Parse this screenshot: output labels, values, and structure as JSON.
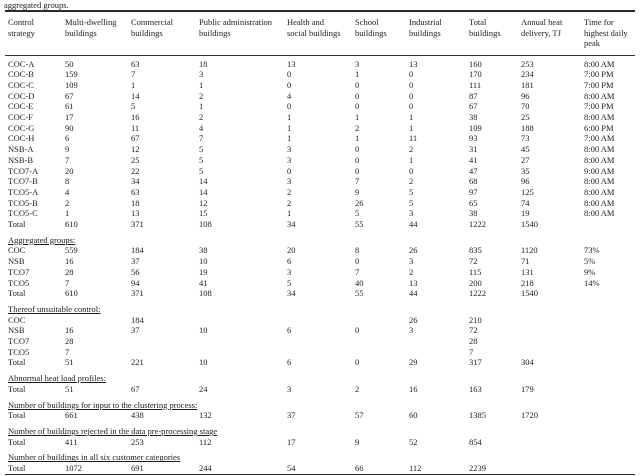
{
  "caption_tail": "aggregated groups.",
  "columns": [
    {
      "label": "Control\nstrategy"
    },
    {
      "label": "Multi-dwelling\nbuildings"
    },
    {
      "label": "Commercial\nbuildings"
    },
    {
      "label": "Public administration\nbuildings"
    },
    {
      "label": "Health and\nsocial buildings"
    },
    {
      "label": "School\nbuildings"
    },
    {
      "label": "Industrial\nbuildings"
    },
    {
      "label": "Total\nbuildings"
    },
    {
      "label": "Annual heat\ndelivery, TJ"
    },
    {
      "label": "Time for\nhighest daily\npeak"
    }
  ],
  "sections": [
    {
      "header": null,
      "rows": [
        {
          "label": "COC-A",
          "values": [
            "50",
            "63",
            "18",
            "13",
            "3",
            "13",
            "160",
            "253",
            "8:00 AM"
          ]
        },
        {
          "label": "COC-B",
          "values": [
            "159",
            "7",
            "3",
            "0",
            "1",
            "0",
            "170",
            "234",
            "7:00 PM"
          ]
        },
        {
          "label": "COC-C",
          "values": [
            "109",
            "1",
            "1",
            "0",
            "0",
            "0",
            "111",
            "181",
            "7:00 PM"
          ]
        },
        {
          "label": "COC-D",
          "values": [
            "67",
            "14",
            "2",
            "4",
            "0",
            "0",
            "87",
            "96",
            "8:00 AM"
          ]
        },
        {
          "label": "COC-E",
          "values": [
            "61",
            "5",
            "1",
            "0",
            "0",
            "0",
            "67",
            "70",
            "7:00 PM"
          ]
        },
        {
          "label": "COC-F",
          "values": [
            "17",
            "16",
            "2",
            "1",
            "1",
            "1",
            "38",
            "25",
            "8:00 AM"
          ]
        },
        {
          "label": "COC-G",
          "values": [
            "90",
            "11",
            "4",
            "1",
            "2",
            "1",
            "109",
            "188",
            "6:00 PM"
          ]
        },
        {
          "label": "COC-H",
          "values": [
            "6",
            "67",
            "7",
            "1",
            "1",
            "11",
            "93",
            "73",
            "7:00 AM"
          ]
        },
        {
          "label": "NSB-A",
          "values": [
            "9",
            "12",
            "5",
            "3",
            "0",
            "2",
            "31",
            "45",
            "8:00 AM"
          ]
        },
        {
          "label": "NSB-B",
          "values": [
            "7",
            "25",
            "5",
            "3",
            "0",
            "1",
            "41",
            "27",
            "8:00 AM"
          ]
        },
        {
          "label": "TCO7-A",
          "values": [
            "20",
            "22",
            "5",
            "0",
            "0",
            "0",
            "47",
            "35",
            "9:00 AM"
          ]
        },
        {
          "label": "TCO7-B",
          "values": [
            "8",
            "34",
            "14",
            "3",
            "7",
            "2",
            "68",
            "96",
            "8:00 AM"
          ]
        },
        {
          "label": "TCO5-A",
          "values": [
            "4",
            "63",
            "14",
            "2",
            "9",
            "5",
            "97",
            "125",
            "8:00 AM"
          ]
        },
        {
          "label": "TCO5-B",
          "values": [
            "2",
            "18",
            "12",
            "2",
            "26",
            "5",
            "65",
            "74",
            "8:00 AM"
          ]
        },
        {
          "label": "TCO5-C",
          "values": [
            "1",
            "13",
            "15",
            "1",
            "5",
            "3",
            "38",
            "19",
            "8:00 AM"
          ]
        },
        {
          "label": "Total",
          "values": [
            "610",
            "371",
            "108",
            "34",
            "55",
            "44",
            "1222",
            "1540",
            ""
          ]
        }
      ]
    },
    {
      "header": "Aggregated groups:",
      "rows": [
        {
          "label": "COC",
          "values": [
            "559",
            "184",
            "38",
            "20",
            "8",
            "26",
            "835",
            "1120",
            "73%"
          ]
        },
        {
          "label": "NSB",
          "values": [
            "16",
            "37",
            "10",
            "6",
            "0",
            "3",
            "72",
            "71",
            "5%"
          ]
        },
        {
          "label": "TCO7",
          "values": [
            "28",
            "56",
            "19",
            "3",
            "7",
            "2",
            "115",
            "131",
            "9%"
          ]
        },
        {
          "label": "TCO5",
          "values": [
            "7",
            "94",
            "41",
            "5",
            "40",
            "13",
            "200",
            "218",
            "14%"
          ]
        },
        {
          "label": "Total",
          "values": [
            "610",
            "371",
            "108",
            "34",
            "55",
            "44",
            "1222",
            "1540",
            ""
          ]
        }
      ]
    },
    {
      "header": "Thereof unsuitable control:",
      "rows": [
        {
          "label": "COC",
          "values": [
            "",
            "184",
            "",
            "",
            "",
            "26",
            "210",
            "",
            ""
          ]
        },
        {
          "label": "NSB",
          "values": [
            "16",
            "37",
            "10",
            "6",
            "0",
            "3",
            "72",
            "",
            ""
          ]
        },
        {
          "label": "TCO7",
          "values": [
            "28",
            "",
            "",
            "",
            "",
            "",
            "28",
            "",
            ""
          ]
        },
        {
          "label": "TCO5",
          "values": [
            "7",
            "",
            "",
            "",
            "",
            "",
            "7",
            "",
            ""
          ]
        },
        {
          "label": "Total",
          "values": [
            "51",
            "221",
            "10",
            "6",
            "0",
            "29",
            "317",
            "304",
            ""
          ]
        }
      ]
    },
    {
      "header": "Abnormal heat load profiles:",
      "rows": [
        {
          "label": "Total",
          "values": [
            "51",
            "67",
            "24",
            "3",
            "2",
            "16",
            "163",
            "179",
            ""
          ]
        }
      ]
    },
    {
      "header": "Number of buildings for input to the clustering process:",
      "rows": [
        {
          "label": "Total",
          "values": [
            "661",
            "438",
            "132",
            "37",
            "57",
            "60",
            "1385",
            "1720",
            ""
          ]
        }
      ]
    },
    {
      "header": "Number of buildings rejected in the data pre-processing stage",
      "rows": [
        {
          "label": "Total",
          "values": [
            "411",
            "253",
            "112",
            "17",
            "9",
            "52",
            "854",
            "",
            ""
          ]
        }
      ]
    },
    {
      "header": "Number of buildings in all six customer categories",
      "rows": [
        {
          "label": "Total",
          "values": [
            "1072",
            "691",
            "244",
            "54",
            "66",
            "112",
            "2239",
            "",
            ""
          ]
        }
      ]
    }
  ]
}
